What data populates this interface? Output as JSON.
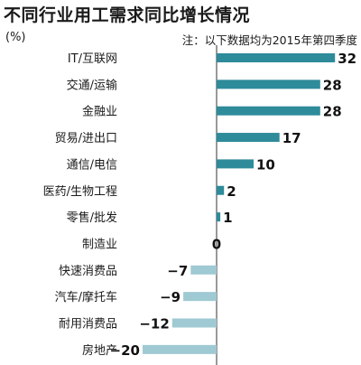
{
  "header": {
    "title": "不同行业用工需求同比增长情况",
    "unit": "(%)",
    "note": "注：以下数据均为2015年第四季度"
  },
  "chart_data": {
    "type": "bar",
    "orientation": "horizontal",
    "title": "不同行业用工需求同比增长情况",
    "ylabel": "(%)",
    "note": "注：以下数据均为2015年第四季度",
    "categories": [
      "IT/互联网",
      "交通/运输",
      "金融业",
      "贸易/进出口",
      "通信/电信",
      "医药/生物工程",
      "零售/批发",
      "制造业",
      "快速消费品",
      "汽车/摩托车",
      "耐用消费品",
      "房地产"
    ],
    "values": [
      32,
      28,
      28,
      17,
      10,
      2,
      1,
      0,
      -7,
      -9,
      -12,
      -20
    ],
    "value_labels": [
      "32",
      "28",
      "28",
      "17",
      "10",
      "2",
      "1",
      "0",
      "−7",
      "−9",
      "−12",
      "−20"
    ],
    "xlim": [
      -20,
      32
    ],
    "grid": false,
    "colors": {
      "positive": "#2e8b9a",
      "negative": "#9fc9d3",
      "axis": "#333333"
    }
  }
}
